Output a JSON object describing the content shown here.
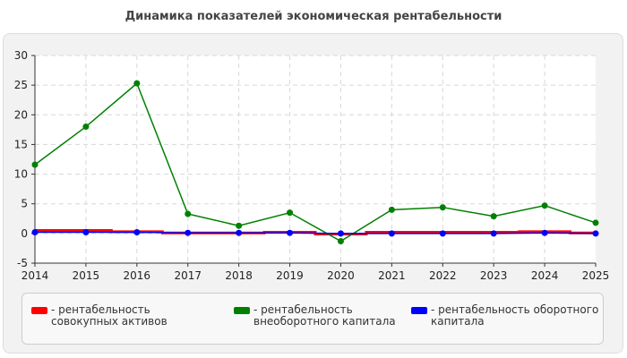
{
  "title": "Динамика показателей экономическая рентабельности",
  "chart_data": {
    "type": "line",
    "x": [
      "2014",
      "2015",
      "2016",
      "2017",
      "2018",
      "2019",
      "2020",
      "2021",
      "2022",
      "2023",
      "2024",
      "2025"
    ],
    "ylim": [
      -5,
      30
    ],
    "yticks": [
      -5,
      0,
      5,
      10,
      15,
      20,
      25,
      30
    ],
    "grid": true,
    "legend_position": "bottom",
    "series": [
      {
        "name": "- рентабельность совокупных активов",
        "color": "#ff0000",
        "style": "step",
        "values": [
          0.5,
          0.5,
          0.3,
          0.1,
          0.1,
          0.2,
          -0.1,
          0.2,
          0.2,
          0.2,
          0.3,
          0.1
        ]
      },
      {
        "name": "- рентабельность внеоборотного капитала",
        "color": "#008000",
        "style": "line",
        "values": [
          11.6,
          18.0,
          25.3,
          3.3,
          1.3,
          3.5,
          -1.3,
          4.0,
          4.4,
          2.9,
          4.7,
          1.8
        ]
      },
      {
        "name": "- рентабельность оборотного капитала",
        "color": "#0000ff",
        "style": "line",
        "values": [
          0.2,
          0.2,
          0.2,
          0.1,
          0.1,
          0.1,
          0.0,
          0.0,
          0.0,
          0.0,
          0.1,
          0.0
        ]
      }
    ]
  }
}
